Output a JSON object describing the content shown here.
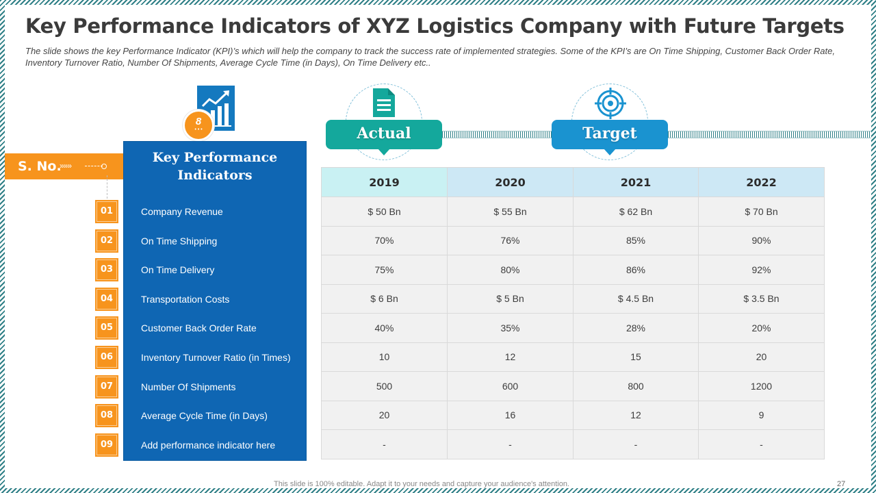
{
  "title": "Key Performance Indicators of XYZ Logistics Company with Future Targets",
  "subtitle": "The slide shows the key Performance Indicator (KPI)’s which will help the company to track the success rate of implemented strategies. Some of the KPI’s are On Time Shipping, Customer Back Order Rate, Inventory Turnover Ratio, Number Of Shipments, Average Cycle Time (in Days), On Time Delivery etc..",
  "badge_text": "8",
  "sno_label": "S. No.",
  "kpi_heading": [
    "Key Performance",
    "Indicators"
  ],
  "actual_label": "Actual",
  "target_label": "Target",
  "years": [
    "2019",
    "2020",
    "2021",
    "2022"
  ],
  "rows": [
    {
      "no": "01",
      "kpi": "Company Revenue",
      "values": [
        "$ 50 Bn",
        "$ 55 Bn",
        "$ 62 Bn",
        "$ 70 Bn"
      ]
    },
    {
      "no": "02",
      "kpi": "On Time Shipping",
      "values": [
        "70%",
        "76%",
        "85%",
        "90%"
      ]
    },
    {
      "no": "03",
      "kpi": "On Time Delivery",
      "values": [
        "75%",
        "80%",
        "86%",
        "92%"
      ]
    },
    {
      "no": "04",
      "kpi": "Transportation Costs",
      "values": [
        "$ 6 Bn",
        "$ 5 Bn",
        "$ 4.5 Bn",
        "$ 3.5 Bn"
      ]
    },
    {
      "no": "05",
      "kpi": "Customer Back Order Rate",
      "values": [
        "40%",
        "35%",
        "28%",
        "20%"
      ]
    },
    {
      "no": "06",
      "kpi": "Inventory Turnover Ratio (in Times)",
      "values": [
        "10",
        "12",
        "15",
        "20"
      ]
    },
    {
      "no": "07",
      "kpi": "Number Of Shipments",
      "values": [
        "500",
        "600",
        "800",
        "1200"
      ]
    },
    {
      "no": "08",
      "kpi": "Average Cycle Time (in Days)",
      "values": [
        "20",
        "16",
        "12",
        "9"
      ]
    },
    {
      "no": "09",
      "kpi": "Add performance indicator here",
      "values": [
        "-",
        "-",
        "-",
        "-"
      ]
    }
  ],
  "footer": "This slide is 100% editable. Adapt it to your needs and capture your audience's attention.",
  "page_number": "27",
  "colors": {
    "orange": "#f7941d",
    "blue_panel": "#0f66b3",
    "actual_teal": "#14a89c",
    "target_blue": "#1a93d0",
    "header_2019": "#c9f1f3",
    "header_other": "#cde8f5"
  }
}
